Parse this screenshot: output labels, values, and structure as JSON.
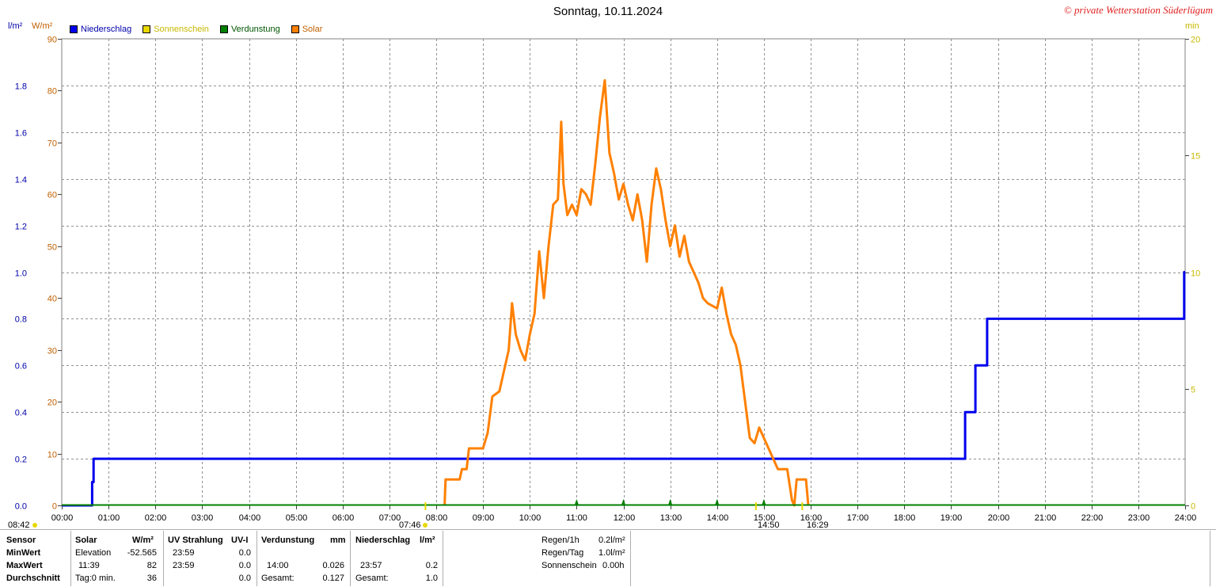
{
  "header": {
    "title": "Sonntag, 10.11.2024",
    "copyright": "© private Wetterstation Süderlügum",
    "unit_left_precip": "l/m²",
    "unit_left_solar": "W/m²",
    "unit_right": "min"
  },
  "legend": [
    {
      "label": "Niederschlag",
      "color": "#0000ee"
    },
    {
      "label": "Sonnenschein",
      "color": "#e8d800"
    },
    {
      "label": "Verdunstung",
      "color": "#008000"
    },
    {
      "label": "Solar",
      "color": "#ff8000"
    }
  ],
  "markers": {
    "sunrise_astr": "08:42",
    "sunrise": "07:46",
    "sunset_min": "14:50",
    "sunset": "16:29"
  },
  "chart_data": {
    "type": "line",
    "title": "Sonntag, 10.11.2024",
    "x_ticks": [
      "00:00",
      "01:00",
      "02:00",
      "03:00",
      "04:00",
      "05:00",
      "06:00",
      "07:00",
      "08:00",
      "09:00",
      "10:00",
      "11:00",
      "12:00",
      "13:00",
      "14:00",
      "15:00",
      "16:00",
      "17:00",
      "18:00",
      "19:00",
      "20:00",
      "21:00",
      "22:00",
      "23:00",
      "24:00"
    ],
    "xlim_hours": [
      0,
      24
    ],
    "y_left_precip": {
      "label": "l/m²",
      "lim": [
        0,
        2.0
      ],
      "ticks": [
        "0.0",
        "0.2",
        "0.4",
        "0.6",
        "0.8",
        "1.0",
        "1.2",
        "1.4",
        "1.6",
        "1.8"
      ]
    },
    "y_left_solar": {
      "label": "W/m²",
      "lim": [
        0,
        90
      ],
      "ticks": [
        "0",
        "10",
        "20",
        "30",
        "40",
        "50",
        "60",
        "70",
        "80",
        "90"
      ]
    },
    "y_right": {
      "label": "min",
      "lim": [
        0,
        20
      ],
      "ticks": [
        "0",
        "5",
        "10",
        "15",
        "20"
      ]
    },
    "grid": true,
    "legend_position": "top-left",
    "series": [
      {
        "name": "Niederschlag",
        "axis": "precip",
        "color": "#0000ee",
        "step": true,
        "points": [
          [
            0,
            0
          ],
          [
            0.63,
            0
          ],
          [
            0.65,
            0.1
          ],
          [
            0.68,
            0.2
          ],
          [
            19.25,
            0.2
          ],
          [
            19.3,
            0.4
          ],
          [
            19.5,
            0.4
          ],
          [
            19.52,
            0.6
          ],
          [
            19.72,
            0.6
          ],
          [
            19.77,
            0.8
          ],
          [
            23.95,
            0.8
          ],
          [
            23.98,
            1.0
          ],
          [
            24,
            1.0
          ]
        ]
      },
      {
        "name": "Solar",
        "axis": "solar",
        "color": "#ff8000",
        "points": [
          [
            8.18,
            0
          ],
          [
            8.2,
            5
          ],
          [
            8.5,
            5
          ],
          [
            8.55,
            7
          ],
          [
            8.65,
            7
          ],
          [
            8.7,
            11
          ],
          [
            9.0,
            11
          ],
          [
            9.1,
            14
          ],
          [
            9.2,
            21
          ],
          [
            9.35,
            22
          ],
          [
            9.45,
            26
          ],
          [
            9.55,
            30
          ],
          [
            9.62,
            39
          ],
          [
            9.7,
            33
          ],
          [
            9.8,
            30
          ],
          [
            9.9,
            28
          ],
          [
            10.0,
            33
          ],
          [
            10.1,
            37
          ],
          [
            10.2,
            49
          ],
          [
            10.3,
            40
          ],
          [
            10.4,
            50
          ],
          [
            10.5,
            58
          ],
          [
            10.6,
            59
          ],
          [
            10.67,
            74
          ],
          [
            10.72,
            62
          ],
          [
            10.8,
            56
          ],
          [
            10.9,
            58
          ],
          [
            11.0,
            56
          ],
          [
            11.1,
            61
          ],
          [
            11.2,
            60
          ],
          [
            11.3,
            58
          ],
          [
            11.4,
            66
          ],
          [
            11.5,
            75
          ],
          [
            11.6,
            82
          ],
          [
            11.7,
            68
          ],
          [
            11.8,
            64
          ],
          [
            11.9,
            59
          ],
          [
            12.0,
            62
          ],
          [
            12.1,
            58
          ],
          [
            12.2,
            55
          ],
          [
            12.3,
            60
          ],
          [
            12.4,
            55
          ],
          [
            12.5,
            47
          ],
          [
            12.6,
            58
          ],
          [
            12.7,
            65
          ],
          [
            12.8,
            61
          ],
          [
            12.9,
            55
          ],
          [
            13.0,
            50
          ],
          [
            13.1,
            54
          ],
          [
            13.2,
            48
          ],
          [
            13.3,
            52
          ],
          [
            13.4,
            47
          ],
          [
            13.5,
            45
          ],
          [
            13.6,
            43
          ],
          [
            13.7,
            40
          ],
          [
            13.8,
            39
          ],
          [
            14.0,
            38
          ],
          [
            14.1,
            42
          ],
          [
            14.2,
            37
          ],
          [
            14.3,
            33
          ],
          [
            14.4,
            31
          ],
          [
            14.5,
            27
          ],
          [
            14.6,
            20
          ],
          [
            14.7,
            13
          ],
          [
            14.8,
            12
          ],
          [
            14.9,
            15
          ],
          [
            15.0,
            13
          ],
          [
            15.1,
            11
          ],
          [
            15.2,
            9
          ],
          [
            15.3,
            7
          ],
          [
            15.5,
            7
          ],
          [
            15.6,
            1
          ],
          [
            15.65,
            0
          ],
          [
            15.7,
            5
          ],
          [
            15.9,
            5
          ],
          [
            15.95,
            0
          ]
        ]
      },
      {
        "name": "Sonnenschein",
        "axis": "min",
        "color": "#e8d800",
        "points": []
      },
      {
        "name": "Verdunstung",
        "axis": "min",
        "color": "#008000",
        "hour_marks": [
          11,
          12,
          13,
          14,
          15
        ]
      }
    ]
  },
  "summary": {
    "headers": {
      "sensor": "Sensor",
      "solar": "Solar",
      "solar_unit": "W/m²",
      "uv": "UV Strahlung",
      "uv_unit": "UV-I",
      "evap": "Verdunstung",
      "evap_unit": "mm",
      "precip": "Niederschlag",
      "precip_unit": "l/m²"
    },
    "rows": {
      "min_label": "MinWert",
      "max_label": "MaxWert",
      "avg_label": "Durchschnitt",
      "min_solar_label": "Elevation",
      "min_solar_val": "-52.565",
      "max_solar_time": "11:39",
      "max_solar_val": "82",
      "avg_solar_label": "Tag:0 min.",
      "avg_solar_val": "36",
      "min_uv_time": "23:59",
      "min_uv_val": "0.0",
      "max_uv_time": "23:59",
      "max_uv_val": "0.0",
      "avg_uv_val": "0.0",
      "max_evap_time": "14:00",
      "max_evap_val": "0.026",
      "total_evap_label": "Gesamt:",
      "total_evap_val": "0.127",
      "max_precip_time": "23:57",
      "max_precip_val": "0.2",
      "total_precip_label": "Gesamt:",
      "total_precip_val": "1.0"
    },
    "stats": {
      "rain_1h_label": "Regen/1h",
      "rain_1h_val": "0.2l/m²",
      "rain_day_label": "Regen/Tag",
      "rain_day_val": "1.0l/m²",
      "sunshine_label": "Sonnenschein",
      "sunshine_val": "0.00h"
    }
  }
}
